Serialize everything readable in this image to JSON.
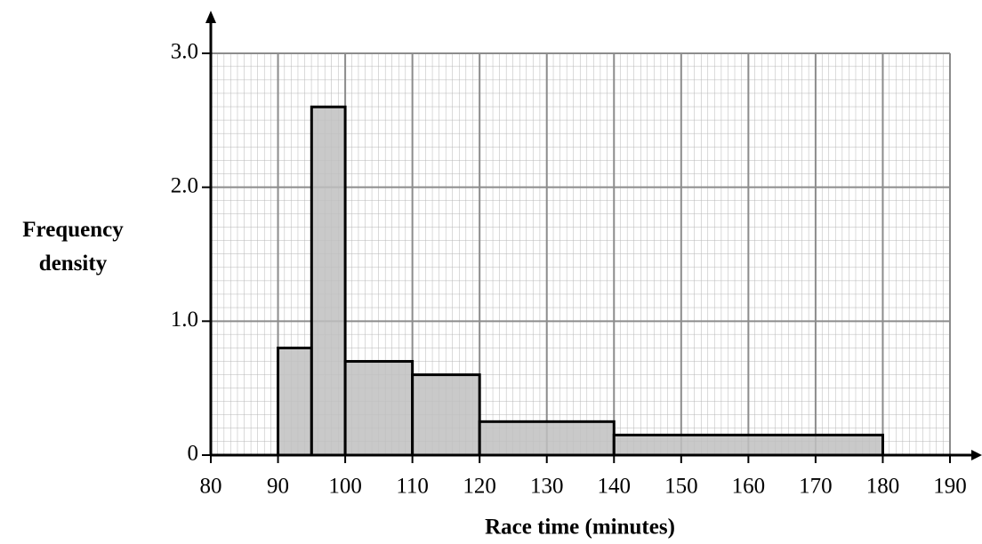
{
  "chart_data": {
    "type": "histogram",
    "xlabel": "Race time (minutes)",
    "ylabel": "Frequency density",
    "bins": [
      90,
      95,
      100,
      110,
      120,
      140,
      180
    ],
    "counts": [
      0.8,
      2.6,
      0.7,
      0.6,
      0.25,
      0.15
    ],
    "color": "#c0c0c0",
    "xlim": [
      80,
      190
    ],
    "ylim": [
      0,
      3
    ],
    "xticks": [
      80,
      90,
      100,
      110,
      120,
      130,
      140,
      150,
      160,
      170,
      180,
      190
    ],
    "yticks": [
      0,
      {
        "value": 1,
        "label": "1.0"
      },
      {
        "value": 2,
        "label": "2.0"
      },
      {
        "value": 3,
        "label": "3.0"
      }
    ],
    "grid": true
  }
}
